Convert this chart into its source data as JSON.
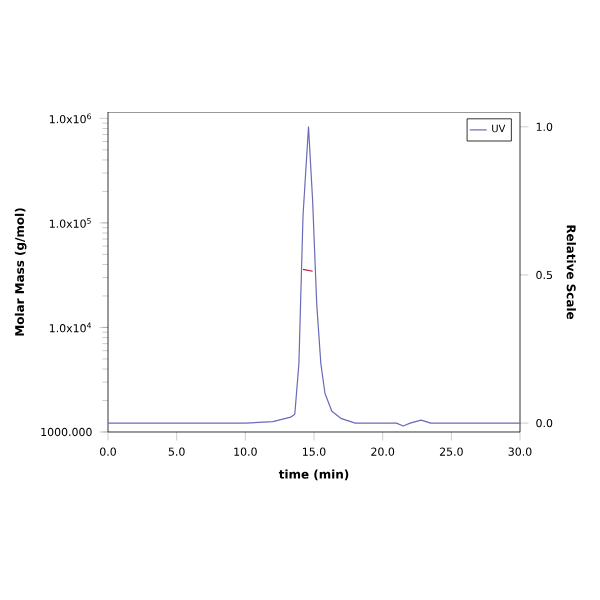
{
  "chart_data": {
    "type": "line",
    "xlabel": "time (min)",
    "ylabel": "Molar Mass (g/mol)",
    "y2label": "Relative Scale",
    "log": "y",
    "legend": "top right",
    "xlim": [
      0,
      30
    ],
    "xticks": [
      {
        "value": 0,
        "label": "0.0"
      },
      {
        "value": 5,
        "label": "5.0"
      },
      {
        "value": 10,
        "label": "10.0"
      },
      {
        "value": 15,
        "label": "15.0"
      },
      {
        "value": 20,
        "label": "20.0"
      },
      {
        "value": 25,
        "label": "25.0"
      },
      {
        "value": 30,
        "label": "30.0"
      }
    ],
    "ylim": [
      1000,
      1150000
    ],
    "yticks": [
      {
        "value": 1000,
        "label": "1000.000"
      },
      {
        "value": 10000,
        "label": "1.0x10$^{4}$"
      },
      {
        "value": 100000,
        "label": "1.0x10$^{5}$"
      },
      {
        "value": 1000000,
        "label": "1.0x10$^{6}$"
      }
    ],
    "y2lim": [
      -0.03,
      1.05
    ],
    "y2ticks": [
      {
        "value": 0,
        "label": "0.0"
      },
      {
        "value": 0.5,
        "label": "0.5"
      },
      {
        "value": 1,
        "label": "1.0"
      }
    ],
    "series": [
      {
        "name": "UV",
        "color": "#6a6ab8",
        "axis": "y2",
        "x": [
          0,
          10,
          12,
          13.3,
          13.6,
          13.9,
          14.2,
          14.6,
          14.9,
          15.2,
          15.5,
          15.8,
          16.3,
          17,
          18,
          21,
          21.5,
          22,
          22.8,
          23.5,
          30
        ],
        "values": [
          0,
          0,
          0.005,
          0.02,
          0.03,
          0.2,
          0.7,
          1.0,
          0.75,
          0.4,
          0.2,
          0.1,
          0.04,
          0.015,
          0,
          0,
          -0.01,
          0,
          0.01,
          0,
          0
        ]
      },
      {
        "color": "#c0143c",
        "x": [
          14.2,
          14.9
        ],
        "values": [
          36000,
          34500
        ]
      }
    ]
  }
}
